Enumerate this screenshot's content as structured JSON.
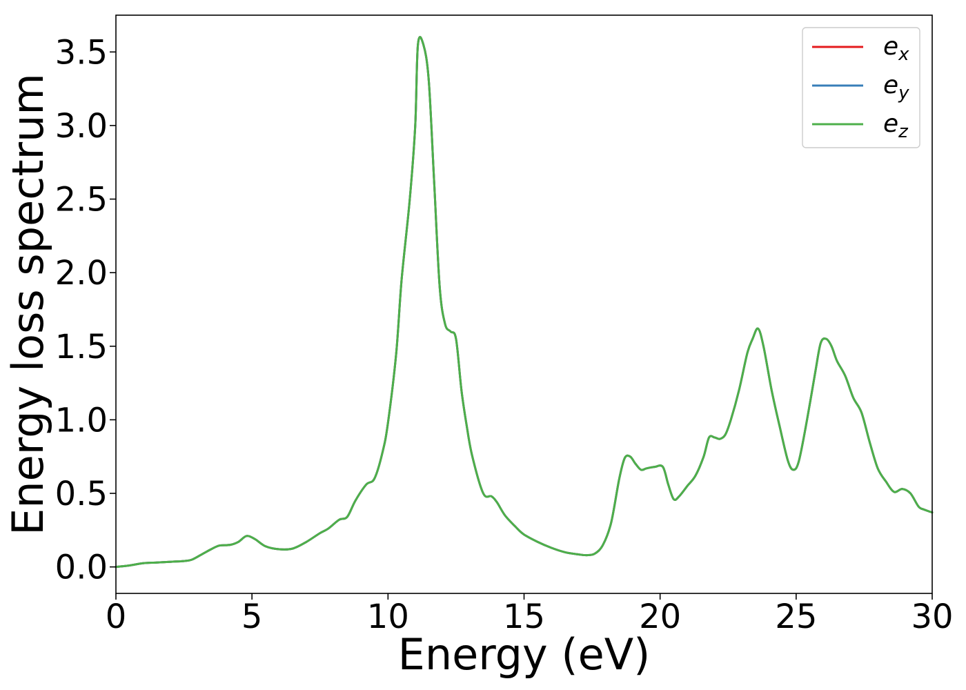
{
  "chart_data": {
    "type": "line",
    "title": "",
    "xlabel": "Energy (eV)",
    "ylabel": "Energy loss spectrum",
    "xlim": [
      0,
      30
    ],
    "ylim": [
      -0.18,
      3.75
    ],
    "xticks": [
      0,
      5,
      10,
      15,
      20,
      25,
      30
    ],
    "xtick_labels": [
      "0",
      "5",
      "10",
      "15",
      "20",
      "25",
      "30"
    ],
    "yticks": [
      0.0,
      0.5,
      1.0,
      1.5,
      2.0,
      2.5,
      3.0,
      3.5
    ],
    "ytick_labels": [
      "0.0",
      "0.5",
      "1.0",
      "1.5",
      "2.0",
      "2.5",
      "3.0",
      "3.5"
    ],
    "grid": false,
    "legend_position": "top-right",
    "x": [
      0,
      0.5,
      1.0,
      1.5,
      2.0,
      2.5,
      2.8,
      3.2,
      3.5,
      3.8,
      4.2,
      4.5,
      4.8,
      5.1,
      5.5,
      6.0,
      6.5,
      7.0,
      7.5,
      7.8,
      8.2,
      8.5,
      8.8,
      9.2,
      9.5,
      9.8,
      10.0,
      10.3,
      10.5,
      10.8,
      11.0,
      11.1,
      11.3,
      11.5,
      11.7,
      11.9,
      12.1,
      12.3,
      12.5,
      12.7,
      12.9,
      13.1,
      13.5,
      13.8,
      14.0,
      14.3,
      14.7,
      15.0,
      15.5,
      16.0,
      16.5,
      17.0,
      17.3,
      17.6,
      17.9,
      18.2,
      18.5,
      18.7,
      18.9,
      19.1,
      19.3,
      19.5,
      19.8,
      20.1,
      20.3,
      20.5,
      20.7,
      21.0,
      21.3,
      21.6,
      21.8,
      22.0,
      22.2,
      22.4,
      22.6,
      22.9,
      23.2,
      23.4,
      23.6,
      23.8,
      24.1,
      24.4,
      24.7,
      24.9,
      25.1,
      25.4,
      25.7,
      25.9,
      26.1,
      26.3,
      26.5,
      26.8,
      27.1,
      27.4,
      27.7,
      28.0,
      28.3,
      28.6,
      28.9,
      29.2,
      29.5,
      29.7,
      30.0
    ],
    "series": [
      {
        "name": "e_x",
        "color": "#e41a1c",
        "values": [
          0.0,
          0.01,
          0.025,
          0.03,
          0.035,
          0.04,
          0.05,
          0.09,
          0.12,
          0.145,
          0.15,
          0.17,
          0.21,
          0.19,
          0.14,
          0.12,
          0.125,
          0.17,
          0.23,
          0.26,
          0.32,
          0.34,
          0.45,
          0.56,
          0.6,
          0.78,
          0.98,
          1.45,
          1.95,
          2.5,
          3.0,
          3.55,
          3.55,
          3.3,
          2.6,
          1.9,
          1.65,
          1.6,
          1.55,
          1.2,
          0.95,
          0.75,
          0.5,
          0.48,
          0.44,
          0.35,
          0.27,
          0.22,
          0.17,
          0.13,
          0.1,
          0.085,
          0.08,
          0.09,
          0.15,
          0.3,
          0.6,
          0.74,
          0.75,
          0.7,
          0.66,
          0.67,
          0.68,
          0.68,
          0.56,
          0.46,
          0.48,
          0.55,
          0.62,
          0.75,
          0.88,
          0.88,
          0.87,
          0.9,
          1.0,
          1.2,
          1.45,
          1.55,
          1.62,
          1.5,
          1.2,
          0.95,
          0.72,
          0.66,
          0.72,
          1.0,
          1.32,
          1.52,
          1.55,
          1.5,
          1.4,
          1.3,
          1.15,
          1.05,
          0.85,
          0.67,
          0.58,
          0.51,
          0.53,
          0.5,
          0.41,
          0.39,
          0.37
        ]
      },
      {
        "name": "e_y",
        "color": "#377eb8",
        "values": [
          0.0,
          0.01,
          0.025,
          0.03,
          0.035,
          0.04,
          0.05,
          0.09,
          0.12,
          0.145,
          0.15,
          0.17,
          0.21,
          0.19,
          0.14,
          0.12,
          0.125,
          0.17,
          0.23,
          0.26,
          0.32,
          0.34,
          0.45,
          0.56,
          0.6,
          0.78,
          0.98,
          1.45,
          1.95,
          2.5,
          3.0,
          3.55,
          3.55,
          3.3,
          2.6,
          1.9,
          1.65,
          1.6,
          1.55,
          1.2,
          0.95,
          0.75,
          0.5,
          0.48,
          0.44,
          0.35,
          0.27,
          0.22,
          0.17,
          0.13,
          0.1,
          0.085,
          0.08,
          0.09,
          0.15,
          0.3,
          0.6,
          0.74,
          0.75,
          0.7,
          0.66,
          0.67,
          0.68,
          0.68,
          0.56,
          0.46,
          0.48,
          0.55,
          0.62,
          0.75,
          0.88,
          0.88,
          0.87,
          0.9,
          1.0,
          1.2,
          1.45,
          1.55,
          1.62,
          1.5,
          1.2,
          0.95,
          0.72,
          0.66,
          0.72,
          1.0,
          1.32,
          1.52,
          1.55,
          1.5,
          1.4,
          1.3,
          1.15,
          1.05,
          0.85,
          0.67,
          0.58,
          0.51,
          0.53,
          0.5,
          0.41,
          0.39,
          0.37
        ]
      },
      {
        "name": "e_z",
        "color": "#4daf4a",
        "values": [
          0.0,
          0.01,
          0.025,
          0.03,
          0.035,
          0.04,
          0.05,
          0.09,
          0.12,
          0.145,
          0.15,
          0.17,
          0.21,
          0.19,
          0.14,
          0.12,
          0.125,
          0.17,
          0.23,
          0.26,
          0.32,
          0.34,
          0.45,
          0.56,
          0.6,
          0.78,
          0.98,
          1.45,
          1.95,
          2.5,
          3.0,
          3.55,
          3.55,
          3.3,
          2.6,
          1.9,
          1.65,
          1.6,
          1.55,
          1.2,
          0.95,
          0.75,
          0.5,
          0.48,
          0.44,
          0.35,
          0.27,
          0.22,
          0.17,
          0.13,
          0.1,
          0.085,
          0.08,
          0.09,
          0.15,
          0.3,
          0.6,
          0.74,
          0.75,
          0.7,
          0.66,
          0.67,
          0.68,
          0.68,
          0.56,
          0.46,
          0.48,
          0.55,
          0.62,
          0.75,
          0.88,
          0.88,
          0.87,
          0.9,
          1.0,
          1.2,
          1.45,
          1.55,
          1.62,
          1.5,
          1.2,
          0.95,
          0.72,
          0.66,
          0.72,
          1.0,
          1.32,
          1.52,
          1.55,
          1.5,
          1.4,
          1.3,
          1.15,
          1.05,
          0.85,
          0.67,
          0.58,
          0.51,
          0.53,
          0.5,
          0.41,
          0.39,
          0.37
        ]
      }
    ],
    "legend": [
      {
        "base": "e",
        "sub": "x",
        "color": "#e41a1c"
      },
      {
        "base": "e",
        "sub": "y",
        "color": "#377eb8"
      },
      {
        "base": "e",
        "sub": "z",
        "color": "#4daf4a"
      }
    ]
  }
}
